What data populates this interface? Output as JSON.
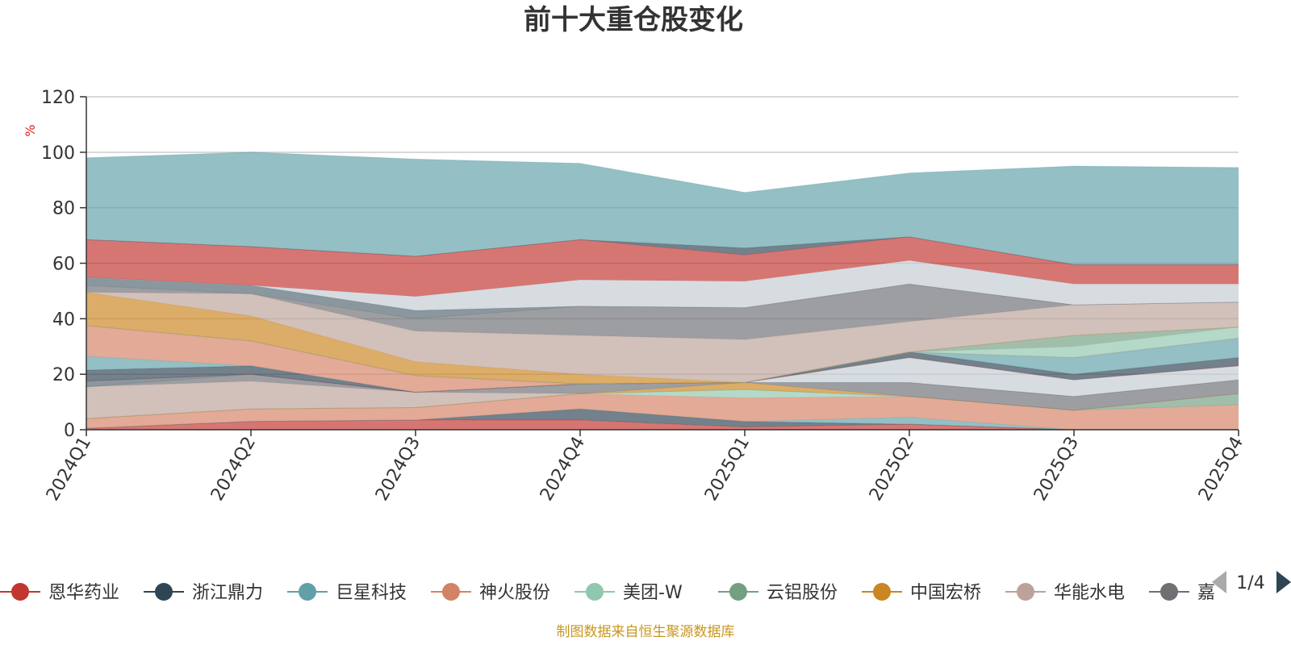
{
  "chart_data": {
    "type": "area",
    "title": "前十大重仓股变化",
    "ylabel": "%",
    "ylim": [
      0,
      120
    ],
    "yticks": [
      0,
      20,
      40,
      60,
      80,
      100,
      120
    ],
    "grid": true,
    "categories": [
      "2024Q1",
      "2024Q2",
      "2024Q3",
      "2024Q4",
      "2025Q1",
      "2025Q2",
      "2025Q3",
      "2025Q4"
    ],
    "series": [
      {
        "name": "恩华药业",
        "color": "#c23531",
        "values": [
          0.5,
          3,
          3.5,
          3.5,
          1,
          2,
          0,
          0
        ]
      },
      {
        "name": "浙江鼎力",
        "color": "#2f4554",
        "values": [
          0,
          0,
          0,
          4,
          2,
          0,
          0,
          0
        ]
      },
      {
        "name": "巨星科技",
        "color": "#61a0a8",
        "values": [
          0,
          0,
          0,
          0,
          0,
          2.5,
          0,
          0
        ]
      },
      {
        "name": "神火股份",
        "color": "#d48265",
        "values": [
          3.5,
          4.5,
          4.5,
          5.5,
          8.5,
          7.5,
          7,
          9
        ]
      },
      {
        "name": "美团-W",
        "color": "#91c7ae",
        "values": [
          0,
          0,
          0,
          0,
          3,
          0,
          0,
          0
        ]
      },
      {
        "name": "云铝股份",
        "color": "#749f83",
        "values": [
          0,
          0,
          0,
          0,
          0,
          0,
          0,
          4
        ]
      },
      {
        "name": "中国宏桥",
        "color": "#ca8622",
        "values": [
          0,
          0,
          0,
          0,
          2.5,
          0,
          0,
          0
        ]
      },
      {
        "name": "华能水电",
        "color": "#bda29a",
        "values": [
          11.5,
          10,
          5.5,
          0,
          0,
          0,
          0,
          0
        ]
      },
      {
        "name": "嘉",
        "color": "#6e7074",
        "values": [
          0,
          2.5,
          0,
          3.5,
          0,
          5,
          5,
          5
        ]
      },
      {
        "name": "",
        "color": "#546570",
        "values": [
          2,
          0,
          0,
          0,
          0,
          0,
          0,
          0
        ]
      },
      {
        "name": "",
        "color": "#c4ccd3",
        "values": [
          0,
          0,
          0,
          0,
          0,
          9,
          6,
          5
        ]
      },
      {
        "name": "",
        "color": "#c23531",
        "values": [
          0,
          0,
          0,
          0,
          0,
          0,
          0,
          0
        ]
      },
      {
        "name": "",
        "color": "#2f4554",
        "values": [
          4,
          3,
          0,
          0,
          0,
          2,
          2,
          3
        ]
      },
      {
        "name": "",
        "color": "#61a0a8",
        "values": [
          5,
          0,
          0,
          0,
          0,
          0,
          6,
          7
        ]
      },
      {
        "name": "",
        "color": "#d48265",
        "values": [
          11,
          9,
          6,
          0,
          0,
          0,
          0,
          0
        ]
      },
      {
        "name": "",
        "color": "#91c7ae",
        "values": [
          0,
          0,
          0,
          0,
          0,
          0,
          4,
          4
        ]
      },
      {
        "name": "",
        "color": "#749f83",
        "values": [
          0,
          0,
          0,
          0,
          0,
          0,
          4,
          0
        ]
      },
      {
        "name": "",
        "color": "#ca8622",
        "values": [
          12,
          9,
          5,
          3.5,
          0,
          0,
          0,
          0
        ]
      },
      {
        "name": "",
        "color": "#bda29a",
        "values": [
          0,
          8,
          11,
          14,
          15.5,
          11,
          11,
          9
        ]
      },
      {
        "name": "",
        "color": "#6e7074",
        "values": [
          2.5,
          0,
          4.5,
          10.5,
          11.5,
          13.5,
          0,
          0
        ]
      },
      {
        "name": "",
        "color": "#546570",
        "values": [
          3,
          3,
          3,
          0,
          0,
          0,
          0,
          0
        ]
      },
      {
        "name": "",
        "color": "#c4ccd3",
        "values": [
          0,
          0,
          5,
          9.5,
          9.5,
          8.5,
          7.5,
          6.5
        ]
      },
      {
        "name": "",
        "color": "#c23531",
        "values": [
          13.5,
          14,
          14.5,
          14.5,
          9.5,
          8.5,
          7,
          7
        ]
      },
      {
        "name": "",
        "color": "#2f4554",
        "values": [
          0,
          0,
          0,
          0,
          2.5,
          0,
          0,
          0
        ]
      },
      {
        "name": "",
        "color": "#61a0a8",
        "values": [
          29.5,
          34,
          35,
          27.5,
          20,
          23,
          35.5,
          35
        ]
      }
    ]
  },
  "legend": {
    "items": [
      {
        "name": "恩华药业",
        "color": "#c23531"
      },
      {
        "name": "浙江鼎力",
        "color": "#2f4554"
      },
      {
        "name": "巨星科技",
        "color": "#61a0a8"
      },
      {
        "name": "神火股份",
        "color": "#d48265"
      },
      {
        "name": "美团-W",
        "color": "#91c7ae"
      },
      {
        "name": "云铝股份",
        "color": "#749f83"
      },
      {
        "name": "中国宏桥",
        "color": "#ca8622"
      },
      {
        "name": "华能水电",
        "color": "#bda29a"
      },
      {
        "name": "嘉",
        "color": "#6e7074"
      }
    ],
    "page": "1/4",
    "prev_icon": "triangle-left-icon",
    "next_icon": "triangle-right-icon"
  },
  "source_note": "制图数据来自恒生聚源数据库"
}
